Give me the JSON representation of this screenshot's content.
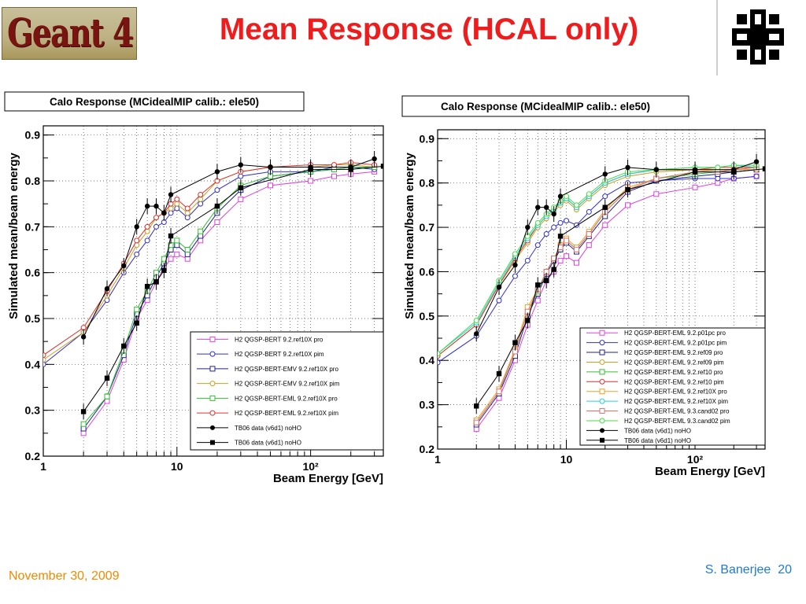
{
  "header": {
    "title": "Mean Response (HCAL only)",
    "logo_text": "Geant 4",
    "logo_icon": "fermilab-logo",
    "title_color": "#ee1c1c"
  },
  "footer": {
    "date": "November 30, 2009",
    "author": "S. Banerjee",
    "page": "20"
  },
  "chart_data": [
    {
      "type": "scatter",
      "title": "Calo  Response (MCidealMIP  calib.: ele50)",
      "xlabel": "Beam Energy [GeV]",
      "ylabel": "Simulated mean/beam energy",
      "xscale": "log",
      "xlim": [
        1,
        350
      ],
      "ylim": [
        0.2,
        0.92
      ],
      "x_tick_labels": [
        "1",
        "10",
        "10²"
      ],
      "y_tick_labels": [
        "0.2",
        "0.3",
        "0.4",
        "0.5",
        "0.6",
        "0.7",
        "0.8",
        "0.9"
      ],
      "legend_position": "bottom-right",
      "series": [
        {
          "name": "H2  QGSP-BERT  9.2.ref10X  pro",
          "color": "#e040e0",
          "marker": "open-square",
          "x": [
            2,
            3,
            4,
            5,
            6,
            7,
            8,
            9,
            10,
            12,
            15,
            20,
            30,
            50,
            100,
            150,
            200,
            300
          ],
          "y": [
            0.25,
            0.32,
            0.41,
            0.5,
            0.54,
            0.58,
            0.61,
            0.63,
            0.64,
            0.63,
            0.67,
            0.71,
            0.76,
            0.79,
            0.8,
            0.81,
            0.815,
            0.82
          ]
        },
        {
          "name": "H2  QGSP-BERT  9.2.ref10X  pim",
          "color": "#3030d0",
          "marker": "open-circle",
          "x": [
            1,
            2,
            3,
            4,
            5,
            6,
            7,
            8,
            9,
            10,
            12,
            15,
            20,
            30,
            50,
            100,
            150,
            200,
            300
          ],
          "y": [
            0.4,
            0.47,
            0.54,
            0.6,
            0.64,
            0.67,
            0.7,
            0.71,
            0.73,
            0.74,
            0.72,
            0.75,
            0.78,
            0.81,
            0.82,
            0.82,
            0.825,
            0.83,
            0.825
          ]
        },
        {
          "name": "H2  QGSP-BERT-EMV  9.2.ref10X  pro",
          "color": "#202090",
          "marker": "open-square",
          "x": [
            2,
            3,
            4,
            5,
            6,
            7,
            8,
            9,
            10,
            12,
            15,
            20,
            30,
            50,
            100,
            150,
            200,
            300
          ],
          "y": [
            0.26,
            0.33,
            0.42,
            0.51,
            0.55,
            0.59,
            0.62,
            0.65,
            0.66,
            0.64,
            0.68,
            0.73,
            0.78,
            0.81,
            0.82,
            0.83,
            0.83,
            0.83
          ]
        },
        {
          "name": "H2  QGSP-BERT-EMV  9.2.ref10X  pim",
          "color": "#c8a020",
          "marker": "open-circle",
          "x": [
            1,
            2,
            3,
            4,
            5,
            6,
            7,
            8,
            9,
            10,
            12,
            15,
            20,
            30,
            50,
            100,
            150,
            200,
            300
          ],
          "y": [
            0.41,
            0.47,
            0.55,
            0.61,
            0.66,
            0.69,
            0.72,
            0.73,
            0.74,
            0.75,
            0.73,
            0.76,
            0.8,
            0.82,
            0.83,
            0.83,
            0.835,
            0.835,
            0.83
          ]
        },
        {
          "name": "H2  QGSP-BERT-EML  9.2.ref10X  pro",
          "color": "#30c030",
          "marker": "open-square",
          "x": [
            2,
            3,
            4,
            5,
            6,
            7,
            8,
            9,
            10,
            12,
            15,
            20,
            30,
            50,
            100,
            150,
            200,
            300
          ],
          "y": [
            0.27,
            0.33,
            0.43,
            0.52,
            0.56,
            0.6,
            0.63,
            0.66,
            0.67,
            0.65,
            0.69,
            0.74,
            0.79,
            0.81,
            0.82,
            0.825,
            0.83,
            0.83
          ]
        },
        {
          "name": "H2  QGSP-BERT-EML  9.2.ref10X  pim",
          "color": "#e03030",
          "marker": "open-circle",
          "x": [
            1,
            2,
            3,
            4,
            5,
            6,
            7,
            8,
            9,
            10,
            12,
            15,
            20,
            30,
            50,
            100,
            150,
            200,
            300
          ],
          "y": [
            0.42,
            0.48,
            0.56,
            0.62,
            0.67,
            0.7,
            0.72,
            0.73,
            0.75,
            0.76,
            0.74,
            0.77,
            0.8,
            0.82,
            0.83,
            0.835,
            0.835,
            0.84,
            0.835
          ]
        },
        {
          "name": "TB06 data (v6d1) noHO",
          "color": "#000000",
          "marker": "filled-circle",
          "x": [
            2,
            3,
            4,
            5,
            6,
            7,
            8,
            9,
            20,
            30,
            50,
            100,
            200,
            300
          ],
          "y": [
            0.46,
            0.565,
            0.615,
            0.7,
            0.745,
            0.745,
            0.73,
            0.77,
            0.82,
            0.835,
            0.83,
            0.83,
            0.83,
            0.848
          ]
        },
        {
          "name": "TB06 data (v6d1) noHO",
          "color": "#000000",
          "marker": "filled-square",
          "x": [
            2,
            3,
            4,
            5,
            6,
            7,
            8,
            9,
            20,
            30,
            100,
            200,
            350
          ],
          "y": [
            0.297,
            0.37,
            0.44,
            0.49,
            0.57,
            0.58,
            0.605,
            0.68,
            0.745,
            0.785,
            0.825,
            0.825,
            0.832
          ]
        }
      ]
    },
    {
      "type": "scatter",
      "title": "Calo  Response (MCidealMIP  calib.: ele50)",
      "xlabel": "Beam Energy [GeV]",
      "ylabel": "Simulated mean/beam energy",
      "xscale": "log",
      "xlim": [
        1,
        350
      ],
      "ylim": [
        0.2,
        0.92
      ],
      "x_tick_labels": [
        "1",
        "10",
        "10²"
      ],
      "y_tick_labels": [
        "0.2",
        "0.3",
        "0.4",
        "0.5",
        "0.6",
        "0.7",
        "0.8",
        "0.9"
      ],
      "legend_position": "bottom-right",
      "series": [
        {
          "name": "H2  QGSP-BERT-EML  9.2.p01pc  pro",
          "color": "#e040e0",
          "marker": "open-square",
          "x": [
            2,
            3,
            4,
            5,
            6,
            7,
            8,
            9,
            10,
            12,
            15,
            20,
            30,
            50,
            100,
            150,
            200,
            300
          ],
          "y": [
            0.245,
            0.315,
            0.4,
            0.48,
            0.535,
            0.58,
            0.6,
            0.625,
            0.635,
            0.62,
            0.66,
            0.705,
            0.75,
            0.775,
            0.79,
            0.8,
            0.81,
            0.815
          ]
        },
        {
          "name": "H2  QGSP-BERT-EML  9.2.p01pc  pim",
          "color": "#3030d0",
          "marker": "open-circle",
          "x": [
            1,
            2,
            3,
            4,
            5,
            6,
            7,
            8,
            9,
            10,
            12,
            15,
            20,
            30,
            50,
            100,
            150,
            200,
            300
          ],
          "y": [
            0.395,
            0.455,
            0.535,
            0.59,
            0.625,
            0.66,
            0.685,
            0.7,
            0.71,
            0.715,
            0.705,
            0.735,
            0.77,
            0.8,
            0.805,
            0.81,
            0.81,
            0.81,
            0.815
          ]
        },
        {
          "name": "H2  QGSP-BERT-EML  9.2.ref09  pro",
          "color": "#202090",
          "marker": "open-square",
          "x": [
            2,
            3,
            4,
            5,
            6,
            7,
            8,
            9,
            10,
            12,
            15,
            20,
            30,
            50,
            100,
            150,
            200,
            300
          ],
          "y": [
            0.255,
            0.325,
            0.41,
            0.5,
            0.55,
            0.595,
            0.625,
            0.65,
            0.665,
            0.645,
            0.68,
            0.725,
            0.78,
            0.805,
            0.815,
            0.82,
            0.825,
            0.83
          ]
        },
        {
          "name": "H2  QGSP-BERT-EML  9.2.ref09  pim",
          "color": "#c8a020",
          "marker": "open-circle",
          "x": [
            1,
            2,
            3,
            4,
            5,
            6,
            7,
            8,
            9,
            10,
            12,
            15,
            20,
            30,
            50,
            100,
            150,
            200,
            300
          ],
          "y": [
            0.41,
            0.48,
            0.57,
            0.625,
            0.665,
            0.7,
            0.72,
            0.735,
            0.75,
            0.76,
            0.74,
            0.765,
            0.795,
            0.815,
            0.825,
            0.83,
            0.83,
            0.83,
            0.83
          ]
        },
        {
          "name": "H2  QGSP-BERT-EML  9.2.ref10  pro",
          "color": "#30c030",
          "marker": "open-square",
          "x": [
            2,
            3,
            4,
            5,
            6,
            7,
            8,
            9,
            10,
            12,
            15,
            20,
            30,
            50,
            100,
            150,
            200,
            300
          ],
          "y": [
            0.26,
            0.33,
            0.42,
            0.51,
            0.555,
            0.6,
            0.63,
            0.655,
            0.67,
            0.65,
            0.685,
            0.735,
            0.785,
            0.81,
            0.82,
            0.825,
            0.83,
            0.835
          ]
        },
        {
          "name": "H2  QGSP-BERT-EML  9.2.ref10  pim",
          "color": "#e03030",
          "marker": "open-circle",
          "x": [
            1,
            2,
            3,
            4,
            5,
            6,
            7,
            8,
            9,
            10,
            12,
            15,
            20,
            30,
            50,
            100,
            150,
            200,
            300
          ],
          "y": [
            0.41,
            0.48,
            0.57,
            0.63,
            0.67,
            0.705,
            0.725,
            0.74,
            0.755,
            0.765,
            0.745,
            0.77,
            0.8,
            0.82,
            0.83,
            0.83,
            0.835,
            0.835,
            0.835
          ]
        },
        {
          "name": "H2  QGSP-BERT-EML  9.2.ref10X  pro",
          "color": "#f0a020",
          "marker": "open-square",
          "x": [
            2,
            3,
            4,
            5,
            6,
            7,
            8,
            9,
            10,
            12,
            15,
            20,
            30,
            50,
            100,
            150,
            200,
            300
          ],
          "y": [
            0.265,
            0.335,
            0.425,
            0.52,
            0.56,
            0.6,
            0.63,
            0.66,
            0.675,
            0.655,
            0.69,
            0.74,
            0.79,
            0.81,
            0.825,
            0.83,
            0.83,
            0.835
          ]
        },
        {
          "name": "H2  QGSP-BERT-EML  9.2.ref10X  pim",
          "color": "#20d0e0",
          "marker": "open-circle",
          "x": [
            1,
            2,
            3,
            4,
            5,
            6,
            7,
            8,
            9,
            10,
            12,
            15,
            20,
            30,
            50,
            100,
            150,
            200,
            300
          ],
          "y": [
            0.415,
            0.485,
            0.575,
            0.635,
            0.675,
            0.705,
            0.725,
            0.74,
            0.755,
            0.765,
            0.745,
            0.77,
            0.8,
            0.82,
            0.83,
            0.835,
            0.835,
            0.84,
            0.835
          ]
        },
        {
          "name": "H2  QGSP-BERT-EML  9.3.cand02  pro",
          "color": "#e07070",
          "marker": "open-square",
          "x": [
            2,
            3,
            4,
            5,
            6,
            7,
            8,
            9,
            10,
            12,
            15,
            20,
            30,
            50,
            100,
            150,
            200,
            300
          ],
          "y": [
            0.26,
            0.33,
            0.42,
            0.51,
            0.56,
            0.6,
            0.63,
            0.655,
            0.67,
            0.65,
            0.685,
            0.735,
            0.785,
            0.81,
            0.825,
            0.825,
            0.83,
            0.835
          ]
        },
        {
          "name": "H2  QGSP-BERT-EML  9.3.cand02  pim",
          "color": "#40e040",
          "marker": "open-circle",
          "x": [
            1,
            2,
            3,
            4,
            5,
            6,
            7,
            8,
            9,
            10,
            12,
            15,
            20,
            30,
            50,
            100,
            150,
            200,
            300
          ],
          "y": [
            0.415,
            0.49,
            0.58,
            0.64,
            0.68,
            0.71,
            0.73,
            0.745,
            0.76,
            0.77,
            0.75,
            0.775,
            0.805,
            0.825,
            0.83,
            0.835,
            0.835,
            0.84,
            0.84
          ]
        },
        {
          "name": "TB06 data (v6d1) noHO",
          "color": "#000000",
          "marker": "filled-circle",
          "x": [
            2,
            3,
            4,
            5,
            6,
            7,
            8,
            9,
            20,
            30,
            50,
            100,
            200,
            300
          ],
          "y": [
            0.46,
            0.565,
            0.615,
            0.7,
            0.745,
            0.745,
            0.73,
            0.77,
            0.82,
            0.835,
            0.83,
            0.83,
            0.83,
            0.848
          ]
        },
        {
          "name": "TB06 data (v6d1) noHO",
          "color": "#000000",
          "marker": "filled-square",
          "x": [
            2,
            3,
            4,
            5,
            6,
            7,
            8,
            9,
            20,
            30,
            100,
            200,
            350
          ],
          "y": [
            0.297,
            0.37,
            0.44,
            0.49,
            0.57,
            0.58,
            0.605,
            0.68,
            0.745,
            0.785,
            0.825,
            0.825,
            0.832
          ]
        }
      ]
    }
  ]
}
